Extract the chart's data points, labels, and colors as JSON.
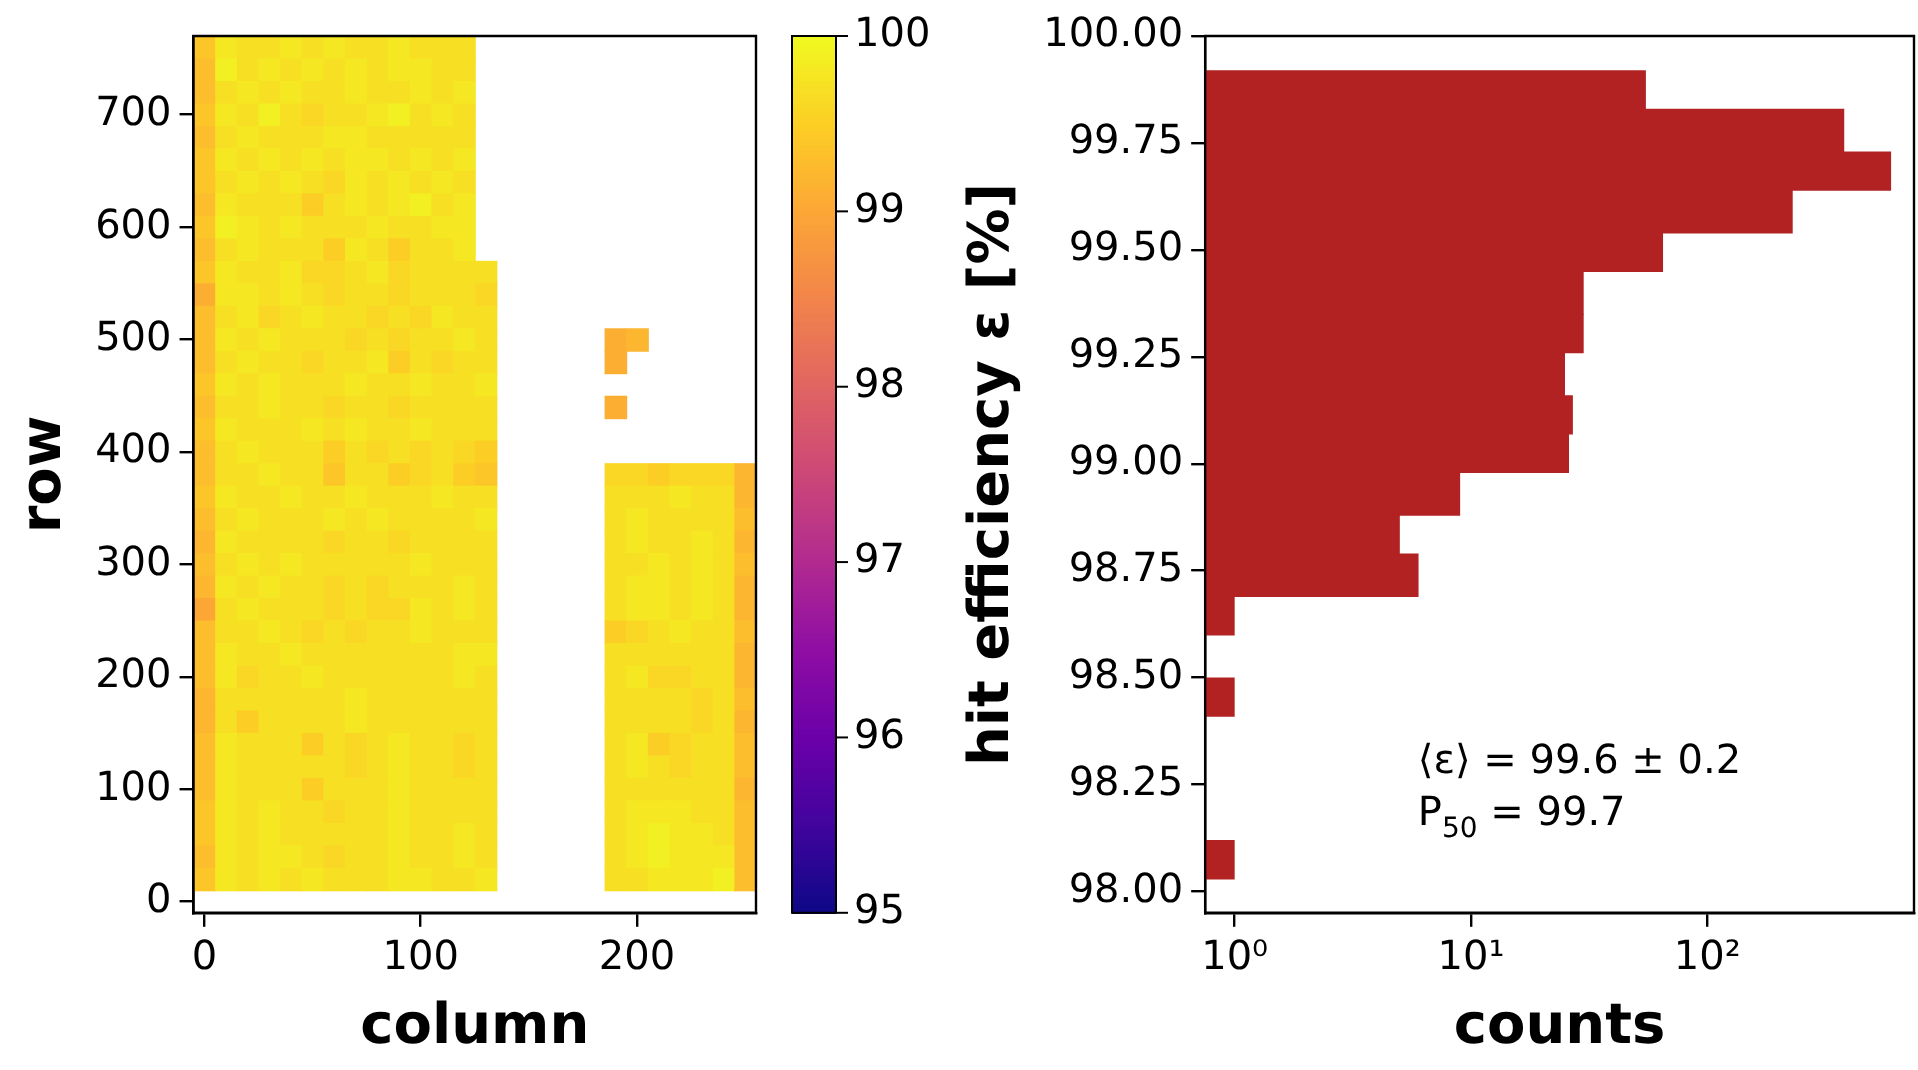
{
  "chart_data": [
    {
      "type": "heatmap",
      "xlabel": "column",
      "ylabel": "row",
      "categories": [
        "0",
        null,
        null,
        null,
        null,
        null,
        null,
        null,
        null,
        null,
        "100",
        null,
        null,
        null,
        null,
        null,
        null,
        null,
        null,
        null,
        "200",
        null,
        null,
        null,
        null,
        null
      ],
      "y_categories": [
        null,
        null,
        null,
        "700",
        null,
        null,
        null,
        null,
        "600",
        null,
        null,
        null,
        null,
        "500",
        null,
        null,
        null,
        null,
        "400",
        null,
        null,
        null,
        null,
        "300",
        null,
        null,
        null,
        null,
        "200",
        null,
        null,
        null,
        null,
        "100",
        null,
        null,
        null,
        null,
        "0"
      ],
      "clim": [
        95,
        100
      ],
      "cticks": [
        95,
        96,
        97,
        98,
        99,
        100
      ],
      "grid": false,
      "cells": [
        [
          99.4,
          99.8,
          99.7,
          99.7,
          99.8,
          99.7,
          99.8,
          99.7,
          99.7,
          99.8,
          99.7,
          99.7,
          99.7,
          null,
          null,
          null,
          null,
          null,
          null,
          null,
          null,
          null,
          null,
          null,
          null,
          null
        ],
        [
          99.3,
          99.9,
          99.7,
          99.8,
          99.7,
          99.8,
          99.7,
          99.8,
          99.7,
          99.8,
          99.8,
          99.7,
          99.7,
          null,
          null,
          null,
          null,
          null,
          null,
          null,
          null,
          null,
          null,
          null,
          null,
          null
        ],
        [
          99.3,
          99.7,
          99.8,
          99.7,
          99.8,
          99.7,
          99.7,
          99.8,
          99.7,
          99.7,
          99.8,
          99.7,
          99.8,
          null,
          null,
          null,
          null,
          null,
          null,
          null,
          null,
          null,
          null,
          null,
          null,
          null
        ],
        [
          99.4,
          99.8,
          99.7,
          99.9,
          99.7,
          99.6,
          99.7,
          99.7,
          99.8,
          99.9,
          99.7,
          99.8,
          99.7,
          null,
          null,
          null,
          null,
          null,
          null,
          null,
          null,
          null,
          null,
          null,
          null,
          null
        ],
        [
          99.3,
          99.7,
          99.8,
          99.7,
          99.7,
          99.7,
          99.8,
          99.8,
          99.7,
          99.7,
          99.7,
          99.7,
          99.7,
          null,
          null,
          null,
          null,
          null,
          null,
          null,
          null,
          null,
          null,
          null,
          null,
          null
        ],
        [
          99.4,
          99.8,
          99.7,
          99.8,
          99.7,
          99.8,
          99.7,
          99.8,
          99.8,
          99.7,
          99.8,
          99.7,
          99.8,
          null,
          null,
          null,
          null,
          null,
          null,
          null,
          null,
          null,
          null,
          null,
          null,
          null
        ],
        [
          99.4,
          99.7,
          99.8,
          99.7,
          99.8,
          99.7,
          99.6,
          99.8,
          99.7,
          99.8,
          99.7,
          99.8,
          99.7,
          null,
          null,
          null,
          null,
          null,
          null,
          null,
          null,
          null,
          null,
          null,
          null,
          null
        ],
        [
          99.3,
          99.8,
          99.7,
          99.7,
          99.7,
          99.5,
          99.7,
          99.8,
          99.7,
          99.8,
          99.9,
          99.7,
          99.8,
          null,
          null,
          null,
          null,
          null,
          null,
          null,
          null,
          null,
          null,
          null,
          null,
          null
        ],
        [
          99.4,
          99.9,
          99.8,
          99.7,
          99.8,
          99.7,
          99.7,
          99.7,
          99.8,
          99.7,
          99.7,
          99.8,
          99.8,
          null,
          null,
          null,
          null,
          null,
          null,
          null,
          null,
          null,
          null,
          null,
          null,
          null
        ],
        [
          99.3,
          99.7,
          99.8,
          99.7,
          99.7,
          99.7,
          99.5,
          99.8,
          99.7,
          99.5,
          99.7,
          99.7,
          99.8,
          null,
          null,
          null,
          null,
          null,
          null,
          null,
          null,
          null,
          null,
          null,
          null,
          null
        ],
        [
          99.4,
          99.8,
          99.7,
          99.7,
          99.8,
          99.6,
          99.6,
          99.7,
          99.8,
          99.6,
          99.7,
          99.7,
          99.7,
          99.7,
          null,
          null,
          null,
          null,
          null,
          null,
          null,
          null,
          null,
          null,
          null,
          null
        ],
        [
          99.1,
          99.8,
          99.8,
          99.7,
          99.8,
          99.7,
          99.6,
          99.7,
          99.7,
          99.6,
          99.7,
          99.7,
          99.7,
          99.6,
          null,
          null,
          null,
          null,
          null,
          null,
          null,
          null,
          null,
          null,
          null,
          null
        ],
        [
          99.3,
          99.7,
          99.8,
          99.6,
          99.7,
          99.8,
          99.7,
          99.7,
          99.6,
          99.7,
          99.6,
          99.8,
          99.7,
          99.7,
          null,
          null,
          null,
          null,
          null,
          null,
          null,
          null,
          null,
          null,
          null,
          null
        ],
        [
          99.3,
          99.8,
          99.7,
          99.8,
          99.7,
          99.7,
          99.7,
          99.6,
          99.7,
          99.6,
          99.7,
          99.7,
          99.8,
          99.7,
          null,
          null,
          null,
          null,
          null,
          99.1,
          99.2,
          null,
          null,
          null,
          null,
          null
        ],
        [
          99.3,
          99.7,
          99.8,
          99.7,
          99.7,
          99.6,
          99.7,
          99.7,
          99.8,
          99.5,
          99.7,
          99.6,
          99.7,
          99.7,
          null,
          null,
          null,
          null,
          null,
          99.1,
          null,
          null,
          null,
          null,
          null,
          null
        ],
        [
          99.4,
          99.8,
          99.7,
          99.8,
          99.7,
          99.7,
          99.7,
          99.8,
          99.7,
          99.7,
          99.8,
          99.7,
          99.7,
          99.8,
          null,
          null,
          null,
          null,
          null,
          null,
          null,
          null,
          null,
          null,
          null,
          null
        ],
        [
          99.3,
          99.7,
          99.7,
          99.8,
          99.7,
          99.7,
          99.6,
          99.7,
          99.7,
          99.6,
          99.7,
          99.7,
          99.7,
          99.7,
          null,
          null,
          null,
          null,
          null,
          99.1,
          null,
          null,
          null,
          null,
          null,
          null
        ],
        [
          99.4,
          99.8,
          99.7,
          99.7,
          99.7,
          99.8,
          99.7,
          99.8,
          99.7,
          99.7,
          99.8,
          99.7,
          99.7,
          99.7,
          null,
          null,
          null,
          null,
          null,
          null,
          null,
          null,
          null,
          null,
          null,
          null
        ],
        [
          99.3,
          99.7,
          99.8,
          99.7,
          99.7,
          99.7,
          99.5,
          99.7,
          99.6,
          99.7,
          99.6,
          99.7,
          99.6,
          99.5,
          null,
          null,
          null,
          null,
          null,
          null,
          null,
          null,
          null,
          null,
          null,
          null
        ],
        [
          99.3,
          99.7,
          99.7,
          99.8,
          99.7,
          99.7,
          99.4,
          99.7,
          99.7,
          99.5,
          99.6,
          99.7,
          99.5,
          99.4,
          null,
          null,
          null,
          null,
          null,
          99.6,
          99.6,
          99.5,
          99.6,
          99.6,
          99.6,
          99.2
        ],
        [
          99.4,
          99.8,
          99.7,
          99.7,
          99.8,
          99.7,
          99.7,
          99.8,
          99.7,
          99.7,
          99.7,
          99.8,
          99.7,
          99.7,
          null,
          null,
          null,
          null,
          null,
          99.7,
          99.7,
          99.7,
          99.8,
          99.7,
          99.7,
          99.2
        ],
        [
          99.3,
          99.7,
          99.8,
          99.7,
          99.7,
          99.7,
          99.8,
          99.7,
          99.8,
          99.7,
          99.7,
          99.7,
          99.7,
          99.8,
          null,
          null,
          null,
          null,
          null,
          99.7,
          99.8,
          99.7,
          99.7,
          99.7,
          99.7,
          99.3
        ],
        [
          99.2,
          99.8,
          99.7,
          99.7,
          99.7,
          99.7,
          99.6,
          99.7,
          99.7,
          99.6,
          99.7,
          99.7,
          99.7,
          99.7,
          null,
          null,
          null,
          null,
          null,
          99.7,
          99.8,
          99.7,
          99.7,
          99.8,
          99.7,
          99.2
        ],
        [
          99.3,
          99.7,
          99.8,
          99.7,
          99.8,
          99.7,
          99.7,
          99.7,
          99.7,
          99.7,
          99.8,
          99.7,
          99.7,
          99.7,
          null,
          null,
          null,
          null,
          null,
          99.7,
          99.7,
          99.8,
          99.7,
          99.8,
          99.7,
          99.3
        ],
        [
          99.2,
          99.8,
          99.7,
          99.8,
          99.7,
          99.7,
          99.6,
          99.7,
          99.6,
          99.7,
          99.7,
          99.7,
          99.8,
          99.7,
          null,
          null,
          null,
          null,
          null,
          99.7,
          99.8,
          99.8,
          99.7,
          99.8,
          99.7,
          99.2
        ],
        [
          99.0,
          99.7,
          99.8,
          99.7,
          99.7,
          99.7,
          99.6,
          99.7,
          99.6,
          99.6,
          99.8,
          99.7,
          99.8,
          99.7,
          null,
          null,
          null,
          null,
          null,
          99.7,
          99.8,
          99.8,
          99.7,
          99.8,
          99.7,
          99.2
        ],
        [
          99.3,
          99.7,
          99.7,
          99.8,
          99.7,
          99.6,
          99.7,
          99.6,
          99.7,
          99.7,
          99.8,
          99.7,
          99.7,
          99.7,
          null,
          null,
          null,
          null,
          null,
          99.5,
          99.6,
          99.7,
          99.8,
          99.7,
          99.7,
          99.3
        ],
        [
          99.3,
          99.8,
          99.7,
          99.7,
          99.8,
          99.7,
          99.7,
          99.7,
          99.7,
          99.7,
          99.7,
          99.7,
          99.8,
          99.8,
          null,
          null,
          null,
          null,
          null,
          99.7,
          99.7,
          99.7,
          99.7,
          99.7,
          99.7,
          99.2
        ],
        [
          99.3,
          99.8,
          99.6,
          99.7,
          99.7,
          99.8,
          99.7,
          99.7,
          99.7,
          99.7,
          99.7,
          99.7,
          99.8,
          99.7,
          null,
          null,
          null,
          null,
          null,
          99.7,
          99.8,
          99.6,
          99.6,
          99.7,
          99.7,
          99.2
        ],
        [
          99.2,
          99.7,
          99.7,
          99.7,
          99.7,
          99.7,
          99.7,
          99.8,
          99.7,
          99.7,
          99.7,
          99.7,
          99.7,
          99.7,
          null,
          null,
          null,
          null,
          null,
          99.7,
          99.7,
          99.7,
          99.7,
          99.6,
          99.7,
          99.3
        ],
        [
          99.2,
          99.7,
          99.5,
          99.7,
          99.7,
          99.7,
          99.7,
          99.8,
          99.7,
          99.7,
          99.7,
          99.7,
          99.7,
          99.7,
          null,
          null,
          null,
          null,
          null,
          99.7,
          99.7,
          99.7,
          99.7,
          99.6,
          99.7,
          99.2
        ],
        [
          99.3,
          99.8,
          99.7,
          99.7,
          99.7,
          99.5,
          99.7,
          99.6,
          99.7,
          99.8,
          99.7,
          99.7,
          99.6,
          99.7,
          null,
          null,
          null,
          null,
          null,
          99.7,
          99.8,
          99.5,
          99.6,
          99.7,
          99.7,
          99.3
        ],
        [
          99.3,
          99.8,
          99.7,
          99.7,
          99.7,
          99.7,
          99.7,
          99.6,
          99.7,
          99.8,
          99.7,
          99.7,
          99.6,
          99.7,
          null,
          null,
          null,
          null,
          null,
          99.7,
          99.8,
          99.7,
          99.6,
          99.7,
          99.7,
          99.3
        ],
        [
          99.3,
          99.8,
          99.7,
          99.7,
          99.7,
          99.5,
          99.7,
          99.7,
          99.7,
          99.8,
          99.7,
          99.7,
          99.7,
          99.7,
          null,
          null,
          null,
          null,
          null,
          99.7,
          99.7,
          99.7,
          99.7,
          99.7,
          99.7,
          99.2
        ],
        [
          99.4,
          99.8,
          99.7,
          99.8,
          99.7,
          99.7,
          99.6,
          99.7,
          99.7,
          99.8,
          99.7,
          99.7,
          99.7,
          99.7,
          null,
          null,
          null,
          null,
          null,
          99.7,
          99.8,
          99.8,
          99.8,
          99.7,
          99.7,
          99.3
        ],
        [
          99.4,
          99.8,
          99.7,
          99.8,
          99.7,
          99.7,
          99.7,
          99.7,
          99.7,
          99.8,
          99.7,
          99.7,
          99.8,
          99.7,
          null,
          null,
          null,
          null,
          null,
          99.7,
          99.8,
          99.9,
          99.8,
          99.8,
          99.7,
          99.3
        ],
        [
          99.3,
          99.8,
          99.7,
          99.8,
          99.8,
          99.7,
          99.6,
          99.7,
          99.7,
          99.8,
          99.7,
          99.7,
          99.8,
          99.7,
          null,
          null,
          null,
          null,
          null,
          99.7,
          99.8,
          99.9,
          99.8,
          99.8,
          99.8,
          99.3
        ],
        [
          99.4,
          99.8,
          99.7,
          99.8,
          99.7,
          99.8,
          99.7,
          99.7,
          99.7,
          99.8,
          99.8,
          99.7,
          99.7,
          99.8,
          null,
          null,
          null,
          null,
          null,
          99.7,
          99.7,
          99.8,
          99.8,
          99.8,
          99.9,
          99.3
        ],
        [
          null,
          null,
          null,
          null,
          null,
          null,
          null,
          null,
          null,
          null,
          null,
          null,
          null,
          null,
          null,
          null,
          null,
          null,
          null,
          null,
          null,
          null,
          null,
          null,
          null,
          null
        ]
      ]
    },
    {
      "type": "histogram",
      "orientation": "horizontal",
      "xlabel": "counts",
      "ylabel": "hit efficiency ε [%]",
      "color": "#b22222",
      "log": "x",
      "grid": false,
      "bins": [
        98.03,
        98.12,
        98.41,
        98.5,
        98.6,
        98.69,
        98.79,
        98.88,
        98.98,
        99.07,
        99.16,
        99.26,
        99.35,
        99.45,
        99.54,
        99.64,
        99.73,
        99.83,
        99.92
      ],
      "values": [
        1,
        null,
        1,
        null,
        1,
        6,
        5,
        9,
        26,
        27,
        25,
        30,
        30,
        65,
        230,
        600,
        380,
        55
      ],
      "xlim": [
        0.75,
        750
      ],
      "xticks": [
        {
          "value": 1,
          "label": "10⁰"
        },
        {
          "value": 10,
          "label": "10¹"
        },
        {
          "value": 100,
          "label": "10²"
        }
      ],
      "ylim": [
        97.95,
        100.0
      ],
      "yticks": [
        {
          "value": 98,
          "label": "98.00"
        },
        {
          "value": 98.25,
          "label": "98.25"
        },
        {
          "value": 98.5,
          "label": "98.50"
        },
        {
          "value": 98.75,
          "label": "98.75"
        },
        {
          "value": 99,
          "label": "99.00"
        },
        {
          "value": 99.25,
          "label": "99.25"
        },
        {
          "value": 99.5,
          "label": "99.50"
        },
        {
          "value": 99.75,
          "label": "99.75"
        },
        {
          "value": 100,
          "label": "100.00"
        }
      ],
      "annotations": [
        "⟨ε⟩ = 99.6 ± 0.2",
        "P$_{50}$ = 99.7"
      ]
    }
  ]
}
